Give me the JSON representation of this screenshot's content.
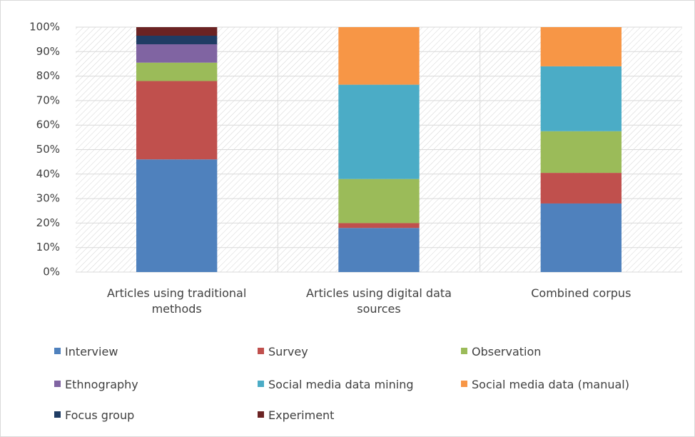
{
  "chart_data": {
    "type": "stacked_bar",
    "categories": [
      "Articles using traditional methods",
      "Articles using digital data sources",
      "Combined corpus"
    ],
    "series": [
      {
        "name": "Interview",
        "color": "#4f81bd",
        "values": [
          46,
          18,
          28
        ]
      },
      {
        "name": "Survey",
        "color": "#c0504d",
        "values": [
          32,
          2,
          12.5
        ]
      },
      {
        "name": "Observation",
        "color": "#9bbb59",
        "values": [
          7.5,
          18,
          17
        ]
      },
      {
        "name": "Ethnography",
        "color": "#8064a2",
        "values": [
          7.5,
          0,
          0
        ]
      },
      {
        "name": "Social media data mining",
        "color": "#4bacc6",
        "values": [
          0,
          38.5,
          26.5
        ]
      },
      {
        "name": "Social media data (manual)",
        "color": "#f79646",
        "values": [
          0,
          23.5,
          16
        ]
      },
      {
        "name": "Focus group",
        "color": "#1f3c64",
        "values": [
          3.5,
          0,
          0
        ]
      },
      {
        "name": "Experiment",
        "color": "#6b2323",
        "values": [
          3.5,
          0,
          0
        ]
      }
    ],
    "ylim": [
      0,
      100
    ],
    "yticks": [
      {
        "value": 0,
        "label": "0%"
      },
      {
        "value": 10,
        "label": "10%"
      },
      {
        "value": 20,
        "label": "20%"
      },
      {
        "value": 30,
        "label": "30%"
      },
      {
        "value": 40,
        "label": "40%"
      },
      {
        "value": 50,
        "label": "50%"
      },
      {
        "value": 60,
        "label": "60%"
      },
      {
        "value": 70,
        "label": "70%"
      },
      {
        "value": 80,
        "label": "80%"
      },
      {
        "value": 90,
        "label": "90%"
      },
      {
        "value": 100,
        "label": "100%"
      }
    ],
    "grid": true,
    "legend": "bottom"
  }
}
